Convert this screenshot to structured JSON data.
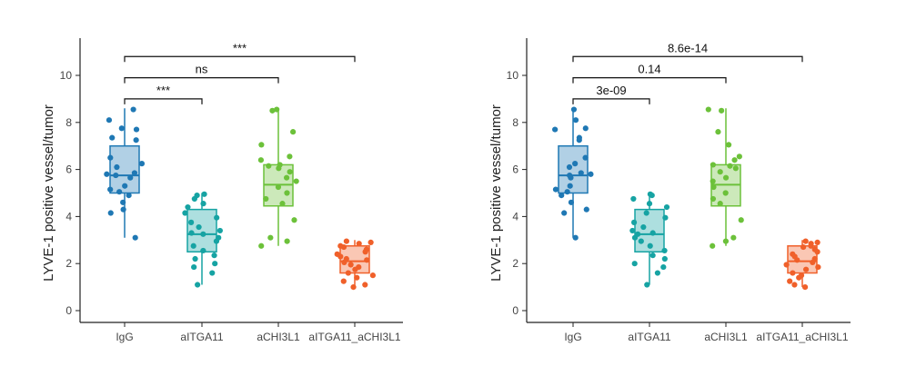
{
  "colors": {
    "IgG": "#1f78b4",
    "aITGA11": "#16a3a3",
    "aCHI3L1": "#6cc13a",
    "aITGA11_aCHI3L1": "#f0602a",
    "axis": "#222222"
  },
  "chart_data": [
    {
      "type": "box",
      "title": "",
      "xlabel": "",
      "ylabel": "LYVE-1 positive vessel/tumor",
      "ylim": [
        -0.5,
        11.5
      ],
      "yticks": [
        0,
        2,
        4,
        6,
        8,
        10
      ],
      "categories": [
        "IgG",
        "aITGA11",
        "aCHI3L1",
        "aITGA11_aCHI3L1"
      ],
      "boxes": [
        {
          "name": "IgG",
          "min": 3.1,
          "q1": 5.0,
          "median": 5.75,
          "q3": 7.0,
          "max": 8.6,
          "points": [
            8.55,
            8.1,
            7.75,
            7.7,
            7.35,
            7.25,
            6.5,
            6.25,
            6.1,
            5.85,
            5.8,
            5.75,
            5.65,
            5.3,
            5.15,
            5.05,
            4.9,
            4.6,
            4.3,
            4.15,
            3.1
          ]
        },
        {
          "name": "aITGA11",
          "min": 1.1,
          "q1": 2.5,
          "median": 3.25,
          "q3": 4.3,
          "max": 5.0,
          "points": [
            4.95,
            4.9,
            4.75,
            4.55,
            4.4,
            4.15,
            3.95,
            3.75,
            3.55,
            3.4,
            3.3,
            3.25,
            3.1,
            2.95,
            2.75,
            2.55,
            2.35,
            2.2,
            2.0,
            1.85,
            1.6,
            1.1
          ]
        },
        {
          "name": "aCHI3L1",
          "min": 2.75,
          "q1": 4.45,
          "median": 5.35,
          "q3": 6.2,
          "max": 8.6,
          "points": [
            8.55,
            8.5,
            7.6,
            7.05,
            6.55,
            6.4,
            6.2,
            6.15,
            6.05,
            5.9,
            5.65,
            5.5,
            5.25,
            5.0,
            4.75,
            4.55,
            3.85,
            3.1,
            2.95,
            2.75
          ]
        },
        {
          "name": "aITGA11_aCHI3L1",
          "min": 1.0,
          "q1": 1.6,
          "median": 2.1,
          "q3": 2.75,
          "max": 3.0,
          "points": [
            2.95,
            2.9,
            2.85,
            2.75,
            2.7,
            2.6,
            2.5,
            2.4,
            2.3,
            2.2,
            2.15,
            2.05,
            1.95,
            1.85,
            1.75,
            1.6,
            1.5,
            1.4,
            1.25,
            1.1,
            1.0
          ]
        }
      ],
      "comparisons": [
        {
          "from": "IgG",
          "to": "aITGA11",
          "y": 9.0,
          "label": "***"
        },
        {
          "from": "IgG",
          "to": "aCHI3L1",
          "y": 9.9,
          "label": "ns"
        },
        {
          "from": "IgG",
          "to": "aITGA11_aCHI3L1",
          "y": 10.8,
          "label": "***"
        }
      ]
    },
    {
      "type": "box",
      "title": "",
      "xlabel": "",
      "ylabel": "LYVE-1 positive vessel/tumor",
      "ylim": [
        -0.5,
        11.5
      ],
      "yticks": [
        0,
        2,
        4,
        6,
        8,
        10
      ],
      "categories": [
        "IgG",
        "aITGA11",
        "aCHI3L1",
        "aITGA11_aCHI3L1"
      ],
      "boxes": [
        {
          "name": "IgG",
          "min": 3.1,
          "q1": 5.0,
          "median": 5.75,
          "q3": 7.0,
          "max": 8.6,
          "points": [
            8.55,
            8.1,
            7.75,
            7.7,
            7.35,
            7.25,
            6.5,
            6.25,
            6.1,
            5.85,
            5.8,
            5.75,
            5.65,
            5.3,
            5.15,
            5.05,
            4.9,
            4.6,
            4.3,
            4.15,
            3.1
          ]
        },
        {
          "name": "aITGA11",
          "min": 1.1,
          "q1": 2.5,
          "median": 3.25,
          "q3": 4.3,
          "max": 5.0,
          "points": [
            4.95,
            4.9,
            4.75,
            4.55,
            4.4,
            4.15,
            3.95,
            3.75,
            3.55,
            3.4,
            3.3,
            3.25,
            3.1,
            2.95,
            2.75,
            2.55,
            2.35,
            2.2,
            2.0,
            1.85,
            1.6,
            1.1
          ]
        },
        {
          "name": "aCHI3L1",
          "min": 2.75,
          "q1": 4.45,
          "median": 5.35,
          "q3": 6.2,
          "max": 8.6,
          "points": [
            8.55,
            8.5,
            7.6,
            7.05,
            6.55,
            6.4,
            6.2,
            6.15,
            6.05,
            5.9,
            5.65,
            5.5,
            5.25,
            5.0,
            4.75,
            4.55,
            3.85,
            3.1,
            2.95,
            2.75
          ]
        },
        {
          "name": "aITGA11_aCHI3L1",
          "min": 1.0,
          "q1": 1.6,
          "median": 2.1,
          "q3": 2.75,
          "max": 3.0,
          "points": [
            2.95,
            2.9,
            2.85,
            2.75,
            2.7,
            2.6,
            2.5,
            2.4,
            2.3,
            2.2,
            2.15,
            2.05,
            1.95,
            1.85,
            1.75,
            1.6,
            1.5,
            1.4,
            1.25,
            1.1,
            1.0
          ]
        }
      ],
      "comparisons": [
        {
          "from": "IgG",
          "to": "aITGA11",
          "y": 9.0,
          "label": "3e-09"
        },
        {
          "from": "IgG",
          "to": "aCHI3L1",
          "y": 9.9,
          "label": "0.14"
        },
        {
          "from": "IgG",
          "to": "aITGA11_aCHI3L1",
          "y": 10.8,
          "label": "8.6e-14"
        }
      ]
    }
  ]
}
